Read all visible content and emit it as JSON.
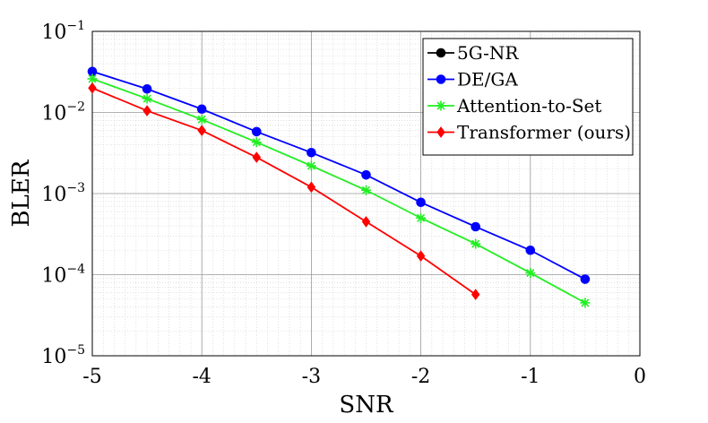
{
  "chart_data": {
    "type": "line",
    "title": "",
    "xlabel": "SNR",
    "ylabel": "BLER",
    "xlim": [
      -5,
      0
    ],
    "ylim": [
      1e-05,
      0.1
    ],
    "yscale": "log",
    "grid": true,
    "minor_grid": true,
    "legend_position": "top-right",
    "x_ticks": [
      "-5",
      "-4",
      "-3",
      "-2",
      "-1",
      "0"
    ],
    "y_ticks": [
      {
        "base": "10",
        "exp": "−1",
        "value": 0.1
      },
      {
        "base": "10",
        "exp": "−2",
        "value": 0.01
      },
      {
        "base": "10",
        "exp": "−3",
        "value": 0.001
      },
      {
        "base": "10",
        "exp": "−4",
        "value": 0.0001
      },
      {
        "base": "10",
        "exp": "−5",
        "value": 1e-05
      }
    ],
    "series": [
      {
        "name": "5G-NR",
        "color": "#000000",
        "marker": "circle",
        "x": [],
        "y": []
      },
      {
        "name": "DE/GA",
        "color": "#0000ff",
        "marker": "circle",
        "x": [
          -5,
          -4.5,
          -4,
          -3.5,
          -3,
          -2.5,
          -2,
          -1.5,
          -1,
          -0.5
        ],
        "y": [
          0.032,
          0.0195,
          0.011,
          0.0058,
          0.0032,
          0.0017,
          0.00078,
          0.00039,
          0.0002,
          8.8e-05
        ]
      },
      {
        "name": "Attention-to-Set",
        "color": "#22ee22",
        "marker": "star",
        "x": [
          -5,
          -4.5,
          -4,
          -3.5,
          -3,
          -2.5,
          -2,
          -1.5,
          -1,
          -0.5
        ],
        "y": [
          0.026,
          0.0148,
          0.0082,
          0.0043,
          0.0022,
          0.0011,
          0.0005,
          0.00024,
          0.000105,
          4.5e-05
        ]
      },
      {
        "name": "Transformer (ours)",
        "color": "#ff0000",
        "marker": "diamond",
        "x": [
          -5,
          -4.5,
          -4,
          -3.5,
          -3,
          -2.5,
          -2,
          -1.5
        ],
        "y": [
          0.02,
          0.0105,
          0.006,
          0.0028,
          0.0012,
          0.00045,
          0.00017,
          5.7e-05
        ]
      }
    ]
  }
}
